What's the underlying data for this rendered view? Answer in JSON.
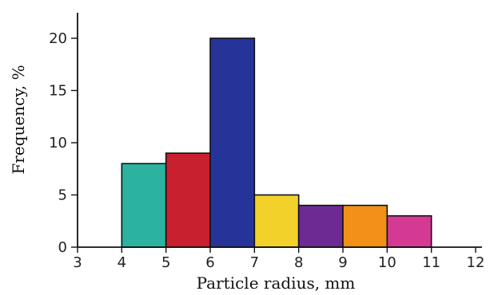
{
  "chart_data": {
    "type": "bar",
    "xlabel": "Particle radius, mm",
    "ylabel": "Frequency, %",
    "xlim": [
      3,
      12
    ],
    "ylim": [
      0,
      20
    ],
    "x_ticks": [
      3,
      4,
      5,
      6,
      7,
      8,
      9,
      10,
      11,
      12
    ],
    "y_ticks": [
      0,
      5,
      10,
      15,
      20
    ],
    "grid": false,
    "bins": [
      {
        "start": 4,
        "end": 5,
        "value": 8,
        "color": "#2bb3a0"
      },
      {
        "start": 5,
        "end": 6,
        "value": 9,
        "color": "#c8202e"
      },
      {
        "start": 6,
        "end": 7,
        "value": 20,
        "color": "#26349a"
      },
      {
        "start": 7,
        "end": 8,
        "value": 5,
        "color": "#f2d12a"
      },
      {
        "start": 8,
        "end": 9,
        "value": 4,
        "color": "#6e2a93"
      },
      {
        "start": 9,
        "end": 10,
        "value": 4,
        "color": "#f39018"
      },
      {
        "start": 10,
        "end": 11,
        "value": 3,
        "color": "#d43a93"
      }
    ]
  }
}
